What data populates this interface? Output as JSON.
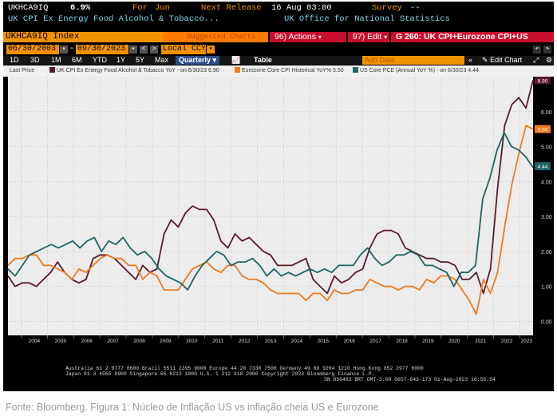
{
  "terminal": {
    "row1": {
      "ticker": "UKHCA9IQ",
      "value": "6.9%",
      "for_label": "For",
      "for_value": "Jun",
      "next_label": "Next Release",
      "next_value": "16 Aug 03:00",
      "survey_label": "Survey",
      "survey_value": "--"
    },
    "row2": {
      "desc": "UK CPI Ex Energy Food Alcohol & Tobacco...",
      "source": "UK Office for National Statistics"
    },
    "row3": {
      "security": "UKHCA9IQ Index",
      "suggested": "Suggested Charts",
      "actions": "96) Actions",
      "edit": "97) Edit",
      "chart_title": "G 260: UK CPI+Eurozone CPI+US"
    },
    "row4": {
      "start": "06/30/2003",
      "end": "09/30/2023",
      "currency": "Local CCY"
    },
    "row5": {
      "ranges": [
        "1D",
        "3D",
        "1M",
        "6M",
        "YTD",
        "1Y",
        "5Y",
        "Max"
      ],
      "period": "Quarterly",
      "table": "Table",
      "add_data": "Add Data",
      "edit_chart": "Edit Chart"
    },
    "footer": {
      "line1": "Australia 61 2 9777 8600 Brazil 5511 2395 9000 Europe 44 20 7330 7500 Germany 49 69 9204 1210 Hong Kong 852 2977 6000",
      "line2": "Japan 81 3 4565 8900         Singapore 65 6212 1000      U.S. 1 212 318 2000                 Copyright 2023 Bloomberg Finance L.P.",
      "line3": "SN 856482 BRT  GMT-3:00 G657-643-173 01-Aug-2023 16:56:54"
    }
  },
  "chart_data": {
    "type": "line",
    "legend_prefix": "Last Price",
    "series": [
      {
        "name": "UK CPI Ex Energy Food Alcohol & Tobacco YoY - on 6/30/23 6.90",
        "color": "#5a1a2e",
        "values": [
          1.3,
          1.0,
          1.1,
          1.1,
          1.0,
          1.2,
          1.4,
          1.7,
          1.4,
          1.2,
          1.1,
          1.2,
          1.8,
          1.9,
          1.9,
          1.8,
          1.6,
          1.4,
          1.2,
          1.6,
          1.4,
          1.5,
          2.5,
          2.9,
          2.7,
          3.1,
          3.3,
          3.2,
          3.2,
          2.9,
          2.3,
          2.1,
          2.5,
          2.3,
          2.4,
          2.2,
          2.0,
          1.9,
          1.6,
          1.6,
          1.6,
          1.7,
          1.8,
          1.2,
          1.0,
          0.8,
          1.3,
          1.1,
          1.2,
          1.4,
          1.5,
          2.1,
          2.5,
          2.6,
          2.6,
          2.5,
          2.1,
          2.0,
          1.9,
          1.8,
          1.8,
          1.7,
          1.7,
          1.6,
          1.2,
          1.2,
          1.4,
          0.8,
          1.5,
          3.8,
          5.6,
          6.2,
          6.4,
          6.1,
          6.9
        ]
      },
      {
        "name": "Eurozone Core CPI Historical YoY% 5.50",
        "color": "#f07a1e",
        "values": [
          1.6,
          1.8,
          1.8,
          1.9,
          1.9,
          1.6,
          1.6,
          1.5,
          1.4,
          1.2,
          1.5,
          1.4,
          1.6,
          1.8,
          1.9,
          1.8,
          1.8,
          1.6,
          1.6,
          1.2,
          1.4,
          1.3,
          0.9,
          0.9,
          0.9,
          1.2,
          1.5,
          1.6,
          1.7,
          1.5,
          1.4,
          1.6,
          1.6,
          1.3,
          1.2,
          1.2,
          1.1,
          0.9,
          0.8,
          0.8,
          0.8,
          0.8,
          0.6,
          0.8,
          0.8,
          0.6,
          0.9,
          0.8,
          0.8,
          0.9,
          0.9,
          1.2,
          1.1,
          1.0,
          1.0,
          0.9,
          1.0,
          1.0,
          0.9,
          1.2,
          1.1,
          1.3,
          1.3,
          1.2,
          0.9,
          0.6,
          0.2,
          1.2,
          0.8,
          1.4,
          2.7,
          3.9,
          4.8,
          5.6,
          5.5
        ]
      },
      {
        "name": "US Core PCE (Annual YoY %) - on 6/30/23 4.44",
        "color": "#1e6464",
        "values": [
          1.5,
          1.3,
          1.6,
          1.9,
          2.0,
          2.1,
          2.2,
          2.1,
          2.2,
          2.3,
          2.1,
          2.3,
          2.4,
          2.0,
          2.3,
          2.2,
          2.4,
          2.1,
          1.9,
          2.0,
          1.8,
          1.5,
          1.3,
          1.2,
          1.1,
          0.9,
          1.3,
          1.6,
          1.8,
          2.0,
          1.9,
          1.6,
          1.7,
          1.7,
          1.8,
          1.6,
          1.3,
          1.5,
          1.3,
          1.4,
          1.3,
          1.4,
          1.5,
          1.4,
          1.5,
          1.4,
          1.6,
          1.6,
          1.6,
          1.9,
          2.1,
          1.8,
          1.6,
          1.7,
          1.9,
          1.9,
          2.0,
          1.9,
          1.6,
          1.6,
          1.5,
          1.4,
          1.0,
          1.4,
          1.4,
          1.6,
          3.5,
          4.1,
          4.9,
          5.4,
          5.0,
          4.9,
          4.7,
          4.4
        ]
      }
    ],
    "x_start": "2003-06-30",
    "x_end": "2023-06-30",
    "x_ticks": [
      "2004",
      "2005",
      "2006",
      "2007",
      "2008",
      "2009",
      "2010",
      "2011",
      "2012",
      "2013",
      "2014",
      "2015",
      "2016",
      "2017",
      "2018",
      "2019",
      "2020",
      "2021",
      "2022",
      "2023"
    ],
    "y_ticks": [
      "0.00",
      "1.00",
      "2.00",
      "3.00",
      "4.00",
      "5.00",
      "6.00"
    ],
    "ylim": [
      -0.4,
      7.0
    ],
    "last_values": [
      "6.90",
      "5.50",
      "4.44"
    ],
    "grid": true,
    "background": "#ececec"
  },
  "caption": "Fonte: Bloomberg. Figura 1: Núcleo de Inflação US  vs inflação cheia US e Eurozone"
}
